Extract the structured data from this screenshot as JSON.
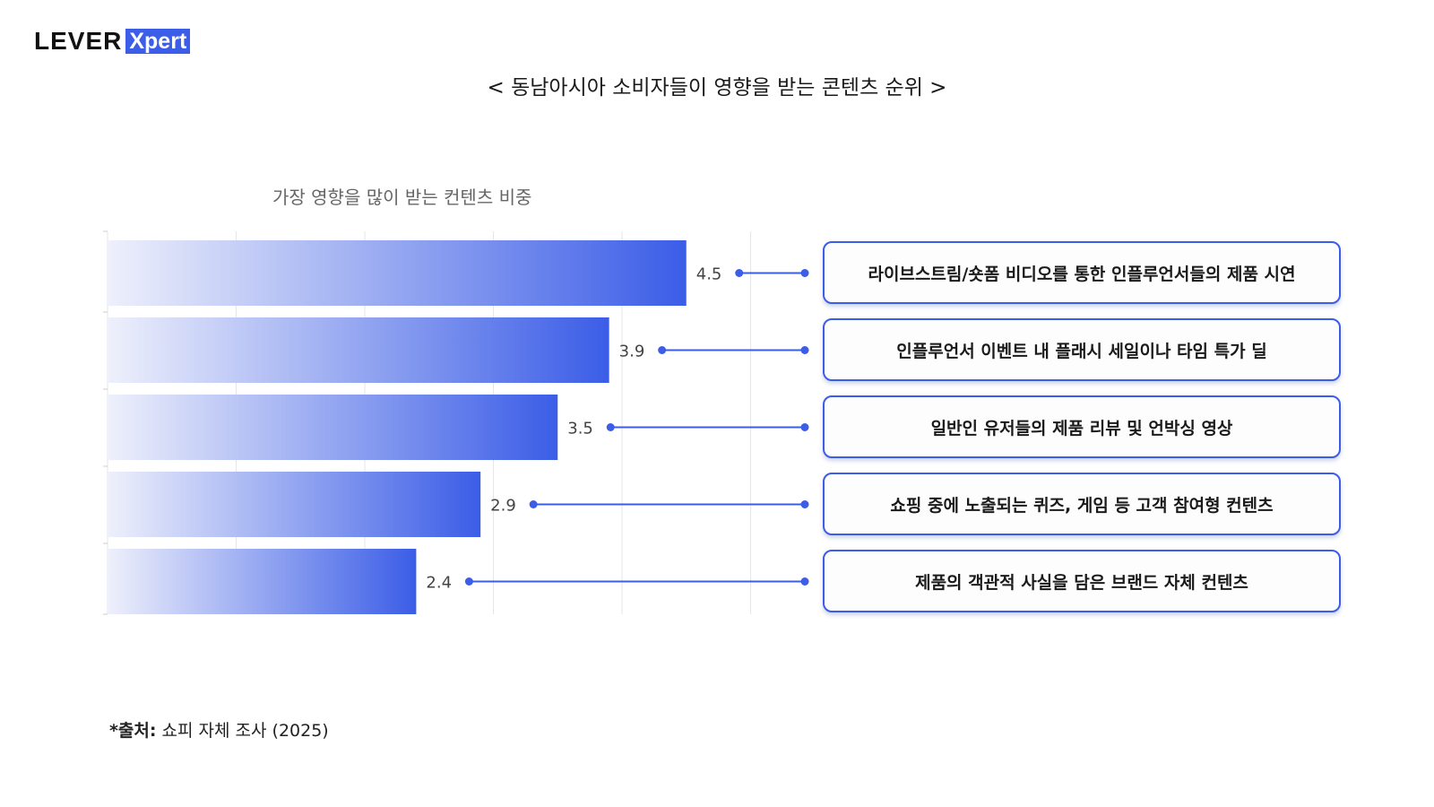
{
  "header": {
    "logo_text": "LEVER",
    "logo_badge": "Xpert",
    "title": "< 동남아시아 소비자들이 영향을 받는 콘텐츠 순위 >"
  },
  "chart_data": {
    "type": "bar",
    "orientation": "horizontal",
    "title": "가장 영향을 많이 받는 컨텐츠 비중",
    "xlabel": "",
    "ylabel": "",
    "xlim": [
      0,
      5
    ],
    "grid": true,
    "categories": [
      "라이브스트림/숏폼 비디오를 통한 인플루언서들의 제품 시연",
      "인플루언서 이벤트 내 플래시 세일이나 타임 특가 딜",
      "일반인 유저들의 제품 리뷰 및 언박싱 영상",
      "쇼핑 중에 노출되는 퀴즈, 게임 등 고객 참여형 컨텐츠",
      "제품의 객관적 사실을 담은 브랜드 자체 컨텐츠"
    ],
    "values": [
      4.5,
      3.9,
      3.5,
      2.9,
      2.4
    ],
    "value_labels": [
      "4.5",
      "3.9",
      "3.5",
      "2.9",
      "2.4"
    ],
    "colors": {
      "bar_start": "#eef0fb",
      "bar_end": "#3b5de7",
      "accent": "#3b5de7",
      "grid": "#e6e6e6",
      "value_text": "#444444"
    }
  },
  "footer": {
    "source_label": "*출처:",
    "source_text": " 쇼피 자체 조사 (2025)"
  }
}
